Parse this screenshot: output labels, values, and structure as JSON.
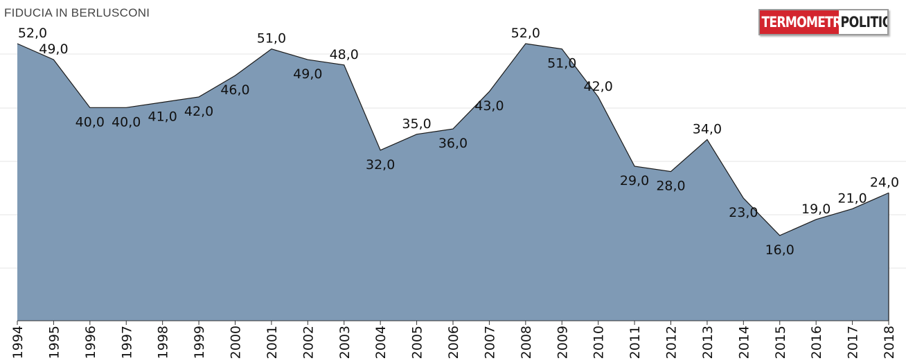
{
  "chart_title": "FIDUCIA IN BERLUSCONI",
  "logo": {
    "part1": "TERMOMETRO",
    "part2": "POLITICO"
  },
  "colors": {
    "area_fill": "#7f9ab5",
    "area_stroke": "#1a1a1a",
    "grid": "#e6e6e6"
  },
  "chart_data": {
    "type": "area",
    "title": "FIDUCIA IN BERLUSCONI",
    "xlabel": "",
    "ylabel": "",
    "x": [
      "1994",
      "1995",
      "1996",
      "1997",
      "1998",
      "1999",
      "2000",
      "2001",
      "2002",
      "2003",
      "2004",
      "2005",
      "2006",
      "2007",
      "2008",
      "2009",
      "2010",
      "2011",
      "2012",
      "2013",
      "2014",
      "2015",
      "2016",
      "2017",
      "2018"
    ],
    "values": [
      52,
      49,
      40,
      40,
      41,
      42,
      46,
      51,
      49,
      48,
      32,
      35,
      36,
      43,
      52,
      51,
      42,
      29,
      28,
      34,
      23,
      16,
      19,
      21,
      24
    ],
    "labels": [
      "52,0",
      "49,0",
      "40,0",
      "40,0",
      "41,0",
      "42,0",
      "46,0",
      "51,0",
      "49,0",
      "48,0",
      "32,0",
      "35,0",
      "36,0",
      "43,0",
      "52,0",
      "51,0",
      "42,0",
      "29,0",
      "28,0",
      "34,0",
      "23,0",
      "16,0",
      "19,0",
      "21,0",
      "24,0"
    ],
    "ylim": [
      0,
      52
    ],
    "grid": true,
    "legend": "none"
  }
}
